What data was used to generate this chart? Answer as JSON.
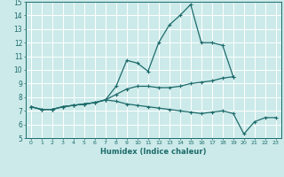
{
  "xlabel": "Humidex (Indice chaleur)",
  "ylabel": "",
  "xlim": [
    -0.5,
    23.5
  ],
  "ylim": [
    5,
    15
  ],
  "yticks": [
    5,
    6,
    7,
    8,
    9,
    10,
    11,
    12,
    13,
    14,
    15
  ],
  "xticks": [
    0,
    1,
    2,
    3,
    4,
    5,
    6,
    7,
    8,
    9,
    10,
    11,
    12,
    13,
    14,
    15,
    16,
    17,
    18,
    19,
    20,
    21,
    22,
    23
  ],
  "bg_color": "#cceaea",
  "grid_color": "#ffffff",
  "line_color": "#1e6b6b",
  "line1_y": [
    7.3,
    7.1,
    7.1,
    7.3,
    7.4,
    7.5,
    7.6,
    7.8,
    8.8,
    10.7,
    10.5,
    9.9,
    12.0,
    13.3,
    14.0,
    14.8,
    12.0,
    12.0,
    11.8,
    9.5,
    null,
    null,
    null,
    null
  ],
  "line2_y": [
    7.3,
    7.1,
    7.1,
    7.3,
    7.4,
    7.5,
    7.6,
    7.8,
    8.2,
    8.6,
    8.8,
    8.8,
    8.7,
    8.7,
    8.8,
    9.0,
    9.1,
    9.2,
    9.4,
    9.5,
    null,
    null,
    null,
    null
  ],
  "line3_y": [
    7.3,
    7.1,
    7.1,
    7.3,
    7.4,
    7.5,
    7.6,
    7.8,
    7.7,
    7.5,
    7.4,
    7.3,
    7.2,
    7.1,
    7.0,
    6.9,
    6.8,
    6.9,
    7.0,
    6.8,
    5.3,
    6.2,
    6.5,
    6.5
  ]
}
